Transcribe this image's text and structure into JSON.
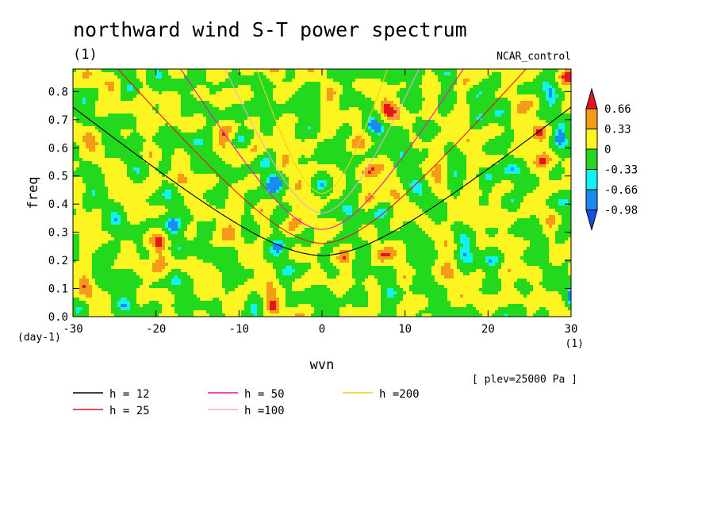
{
  "chart_data": {
    "type": "heatmap",
    "title": "northward wind S-T power spectrum",
    "subtitle_left": "(1)",
    "subtitle_right": "NCAR_control",
    "xlabel": "wvn",
    "ylabel": "freq",
    "x_unit": "(1)",
    "y_unit": "(day-1)",
    "annotation": "[ plev=25000 Pa ]",
    "xlim": [
      -30,
      30
    ],
    "ylim": [
      0,
      0.88
    ],
    "x_ticks": [
      "-30",
      "-20",
      "-10",
      "0",
      "10",
      "20",
      "30"
    ],
    "y_ticks": [
      "0.0",
      "0.1",
      "0.2",
      "0.3",
      "0.4",
      "0.5",
      "0.6",
      "0.7",
      "0.8"
    ],
    "colorbar": {
      "levels": [
        "0.66",
        "0.33",
        "0",
        "-0.33",
        "-0.66",
        "-0.98"
      ],
      "colors": [
        "#e8141c",
        "#f59a19",
        "#fcf521",
        "#23d91e",
        "#13f2f2",
        "#1a8cf0",
        "#1450e6"
      ]
    },
    "series": [
      {
        "name": "h = 12",
        "h": 12,
        "color": "#000000"
      },
      {
        "name": "h = 25",
        "h": 25,
        "color": "#e3141c"
      },
      {
        "name": "h = 50",
        "h": 50,
        "color": "#e312b8"
      },
      {
        "name": "h =100",
        "h": 100,
        "color": "#e6a8e0"
      },
      {
        "name": "h =200",
        "h": 200,
        "color": "#f0d21e"
      }
    ]
  }
}
